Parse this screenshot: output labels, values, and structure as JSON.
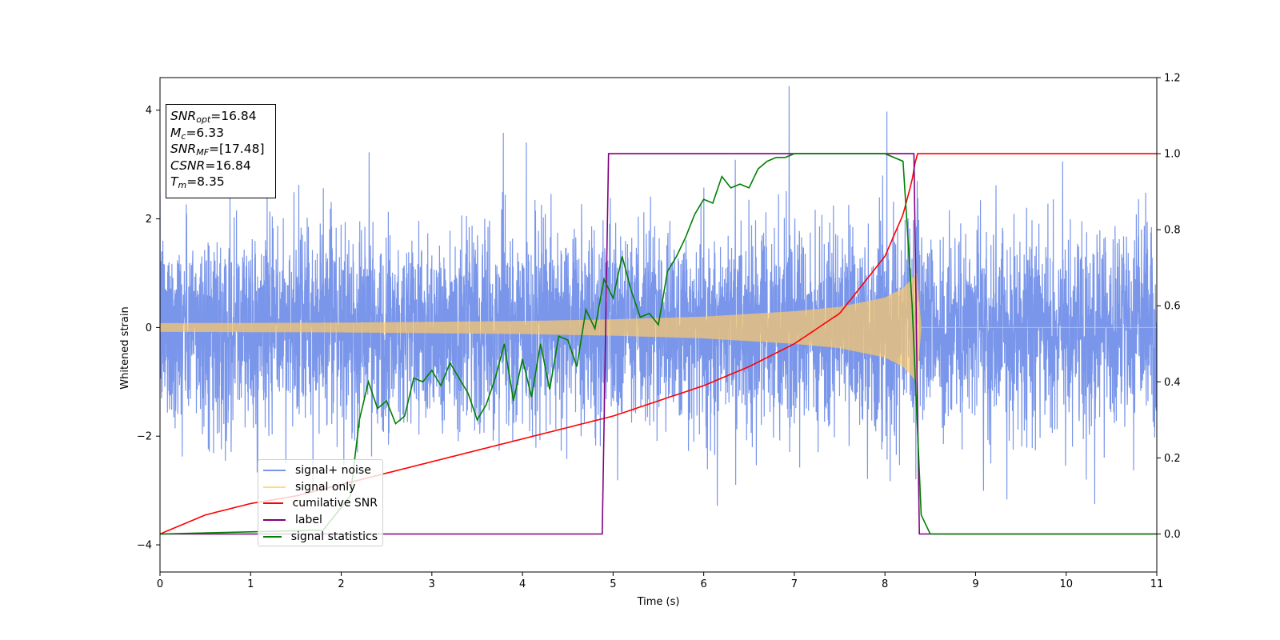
{
  "chart_data": {
    "type": "line",
    "xlabel": "Time (s)",
    "ylabel": "Whitened strain",
    "xlim": [
      0,
      11
    ],
    "ylim_left": [
      -4.5,
      4.6
    ],
    "ylim_right": [
      -0.1,
      1.2
    ],
    "x_ticks": [
      0,
      1,
      2,
      3,
      4,
      5,
      6,
      7,
      8,
      9,
      10,
      11
    ],
    "y_ticks_left": [
      -4,
      -2,
      0,
      2,
      4
    ],
    "y_ticks_right": [
      "0.0",
      "0.2",
      "0.4",
      "0.6",
      "0.8",
      "1.0",
      "1.2"
    ],
    "grid": false,
    "legend_position": "lower-left",
    "annotation": {
      "snr_opt": {
        "sym": "SNR",
        "sub": "opt",
        "value": "=16.84"
      },
      "mc": {
        "sym": "M",
        "sub": "c",
        "value": "=6.33"
      },
      "snr_mf": {
        "sym": "SNR",
        "sub": "MF",
        "value": "=[17.48]"
      },
      "csnr": {
        "sym": "CSNR",
        "value": "=16.84"
      },
      "tm": {
        "sym": "T",
        "sub": "m",
        "value": "=8.35"
      }
    },
    "series": [
      {
        "name": "signal+ noise",
        "color": "#4169e1",
        "axis": "left",
        "description_points": {
          "noise_std": 0.9,
          "x_range": [
            0,
            11
          ]
        }
      },
      {
        "name": "signal only",
        "color": "#ffc966",
        "axis": "left",
        "envelope": {
          "x": [
            0,
            2,
            4,
            5,
            6,
            7,
            7.5,
            8,
            8.2,
            8.3,
            8.35,
            8.4,
            11
          ],
          "amplitude": [
            0.08,
            0.09,
            0.12,
            0.15,
            0.2,
            0.3,
            0.38,
            0.55,
            0.72,
            0.9,
            1.0,
            0.0,
            0.0
          ]
        }
      },
      {
        "name": "cumilative SNR",
        "color": "#ff0000",
        "axis": "right",
        "x": [
          0,
          0.5,
          1,
          1.5,
          2,
          2.5,
          3,
          3.5,
          4,
          4.5,
          5,
          5.5,
          6,
          6.5,
          7,
          7.5,
          8,
          8.2,
          8.3,
          8.35,
          9,
          10,
          11
        ],
        "y": [
          0.0,
          0.05,
          0.08,
          0.1,
          0.13,
          0.16,
          0.19,
          0.22,
          0.25,
          0.28,
          0.31,
          0.35,
          0.39,
          0.44,
          0.5,
          0.58,
          0.73,
          0.84,
          0.93,
          1.0,
          1.0,
          1.0,
          1.0
        ]
      },
      {
        "name": "label",
        "color": "#800080",
        "axis": "right",
        "x": [
          0,
          4.88,
          4.95,
          8.32,
          8.38,
          11
        ],
        "y": [
          0,
          0,
          1,
          1,
          0,
          0
        ]
      },
      {
        "name": "signal statistics",
        "color": "#008000",
        "axis": "right",
        "x": [
          0,
          1.8,
          2.1,
          2.2,
          2.3,
          2.4,
          2.5,
          2.6,
          2.7,
          2.8,
          2.9,
          3.0,
          3.1,
          3.2,
          3.3,
          3.4,
          3.5,
          3.6,
          3.7,
          3.8,
          3.9,
          4.0,
          4.1,
          4.2,
          4.3,
          4.4,
          4.5,
          4.6,
          4.7,
          4.8,
          4.9,
          5.0,
          5.1,
          5.2,
          5.3,
          5.4,
          5.5,
          5.6,
          5.7,
          5.8,
          5.9,
          6.0,
          6.1,
          6.2,
          6.3,
          6.4,
          6.5,
          6.6,
          6.7,
          6.8,
          6.9,
          7.0,
          7.5,
          8.0,
          8.2,
          8.3,
          8.4,
          8.5,
          11
        ],
        "y": [
          0.0,
          0.01,
          0.1,
          0.3,
          0.4,
          0.33,
          0.35,
          0.29,
          0.31,
          0.41,
          0.4,
          0.43,
          0.39,
          0.45,
          0.41,
          0.37,
          0.3,
          0.34,
          0.41,
          0.5,
          0.35,
          0.46,
          0.36,
          0.5,
          0.38,
          0.52,
          0.51,
          0.44,
          0.59,
          0.54,
          0.67,
          0.62,
          0.73,
          0.64,
          0.57,
          0.58,
          0.55,
          0.69,
          0.73,
          0.78,
          0.84,
          0.88,
          0.87,
          0.94,
          0.91,
          0.92,
          0.91,
          0.96,
          0.98,
          0.99,
          0.99,
          1.0,
          1.0,
          1.0,
          0.98,
          0.6,
          0.05,
          0.0,
          0.0
        ]
      }
    ]
  }
}
